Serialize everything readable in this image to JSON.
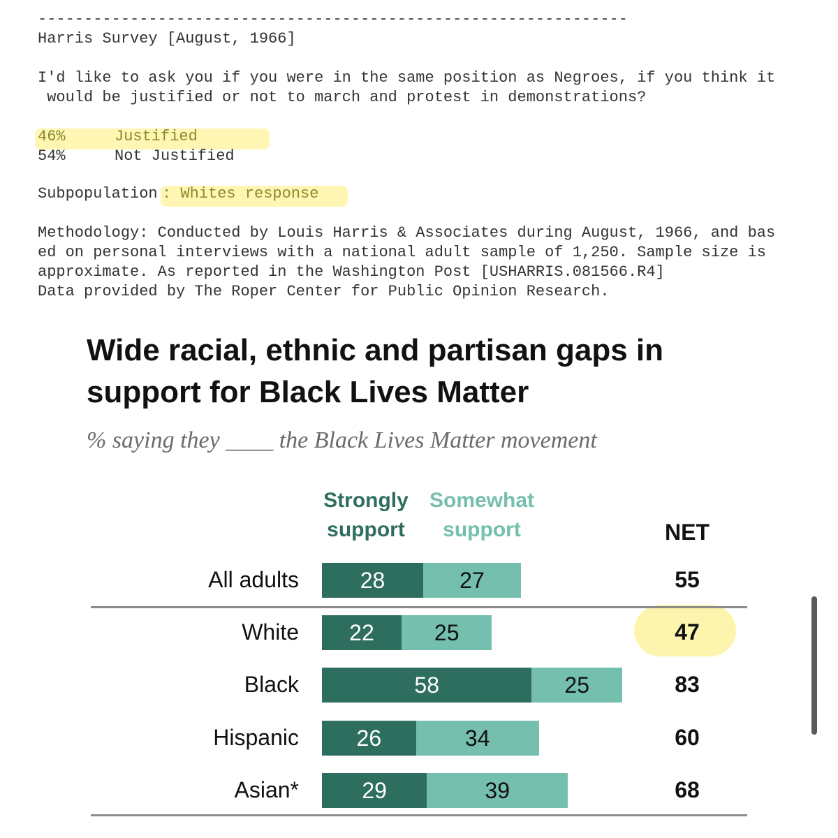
{
  "survey": {
    "divider": "----------------------------------------------------------------",
    "header": "Harris Survey [August, 1966]",
    "question": "I'd like to ask you if you were in the same position as Negroes, if you think it\n would be justified or not to march and protest in demonstrations?",
    "results": [
      {
        "pct": "46%",
        "label": "Justified"
      },
      {
        "pct": "54%",
        "label": "Not Justified"
      }
    ],
    "subpopulation_label": "Subpopulation",
    "subpopulation_value": ": Whites response",
    "methodology": "Methodology: Conducted by Louis Harris & Associates during August, 1966, and bas\ned on personal interviews with a national adult sample of 1,250. Sample size is\napproximate. As reported in the Washington Post [USHARRIS.081566.R4]\nData provided by The Roper Center for Public Opinion Research.",
    "highlight_color": "#fff6b4"
  },
  "chart_data": {
    "type": "bar",
    "stacked": true,
    "orientation": "horizontal",
    "title": "Wide racial, ethnic and partisan gaps in support for Black Lives Matter",
    "subtitle": "% saying they ____ the Black Lives Matter movement",
    "categories": [
      "All adults",
      "White",
      "Black",
      "Hispanic",
      "Asian*"
    ],
    "series": [
      {
        "name": "Strongly support",
        "values": [
          28,
          22,
          58,
          26,
          29
        ],
        "color": "#2e6e5f"
      },
      {
        "name": "Somewhat support",
        "values": [
          27,
          25,
          25,
          34,
          39
        ],
        "color": "#74bfad"
      }
    ],
    "net_label": "NET",
    "net": [
      55,
      47,
      83,
      60,
      68
    ],
    "highlighted_net_category": "White"
  },
  "legend": {
    "strongly_line1": "Strongly",
    "strongly_line2": "support",
    "somewhat_line1": "Somewhat",
    "somewhat_line2": "support",
    "strongly_color": "#2e6e5f",
    "somewhat_color": "#74bfad"
  },
  "scrollbar_icon": "vertical-scrollbar"
}
